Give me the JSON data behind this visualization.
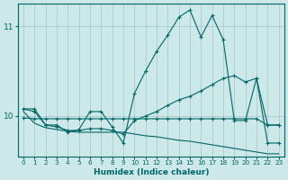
{
  "xlabel": "Humidex (Indice chaleur)",
  "background_color": "#cce8e8",
  "grid_color": "#aacccc",
  "line_color": "#006666",
  "xlim": [
    -0.5,
    23.5
  ],
  "ylim": [
    9.55,
    11.25
  ],
  "yticks": [
    10,
    11
  ],
  "xticks": [
    0,
    1,
    2,
    3,
    4,
    5,
    6,
    7,
    8,
    9,
    10,
    11,
    12,
    13,
    14,
    15,
    16,
    17,
    18,
    19,
    20,
    21,
    22,
    23
  ],
  "series": [
    {
      "x": [
        0,
        1,
        2,
        3,
        4,
        5,
        6,
        7,
        8,
        9,
        10,
        11,
        12,
        13,
        14,
        15,
        16,
        17,
        18,
        19,
        20,
        21,
        22,
        23
      ],
      "y": [
        10.08,
        10.08,
        9.9,
        9.9,
        9.82,
        9.85,
        10.05,
        10.05,
        9.88,
        9.7,
        10.25,
        10.5,
        10.72,
        10.9,
        11.1,
        11.18,
        10.88,
        11.12,
        10.85,
        9.95,
        9.95,
        10.42,
        9.7,
        9.7
      ],
      "marker": "+"
    },
    {
      "x": [
        0,
        1,
        2,
        3,
        4,
        5,
        6,
        7,
        8,
        9,
        10,
        11,
        12,
        13,
        14,
        15,
        16,
        17,
        18,
        19,
        20,
        21,
        22,
        23
      ],
      "y": [
        10.08,
        10.05,
        9.9,
        9.88,
        9.84,
        9.84,
        9.86,
        9.86,
        9.84,
        9.8,
        9.95,
        10.0,
        10.05,
        10.12,
        10.18,
        10.22,
        10.28,
        10.35,
        10.42,
        10.45,
        10.38,
        10.42,
        9.9,
        9.9
      ],
      "marker": "+"
    },
    {
      "x": [
        0,
        1,
        2,
        3,
        4,
        5,
        6,
        7,
        8,
        9,
        10,
        11,
        12,
        13,
        14,
        15,
        16,
        17,
        18,
        19,
        20,
        21,
        22,
        23
      ],
      "y": [
        9.98,
        9.97,
        9.97,
        9.97,
        9.97,
        9.97,
        9.97,
        9.97,
        9.97,
        9.97,
        9.97,
        9.97,
        9.97,
        9.97,
        9.97,
        9.97,
        9.97,
        9.97,
        9.97,
        9.97,
        9.97,
        9.97,
        9.9,
        9.9
      ],
      "marker": "+"
    },
    {
      "x": [
        0,
        1,
        2,
        3,
        4,
        5,
        6,
        7,
        8,
        9,
        10,
        11,
        12,
        13,
        14,
        15,
        16,
        17,
        18,
        19,
        20,
        21,
        22,
        23
      ],
      "y": [
        10.05,
        9.92,
        9.87,
        9.85,
        9.83,
        9.82,
        9.82,
        9.82,
        9.82,
        9.82,
        9.8,
        9.78,
        9.77,
        9.75,
        9.73,
        9.72,
        9.7,
        9.68,
        9.66,
        9.64,
        9.62,
        9.6,
        9.58,
        9.58
      ],
      "marker": null
    }
  ]
}
